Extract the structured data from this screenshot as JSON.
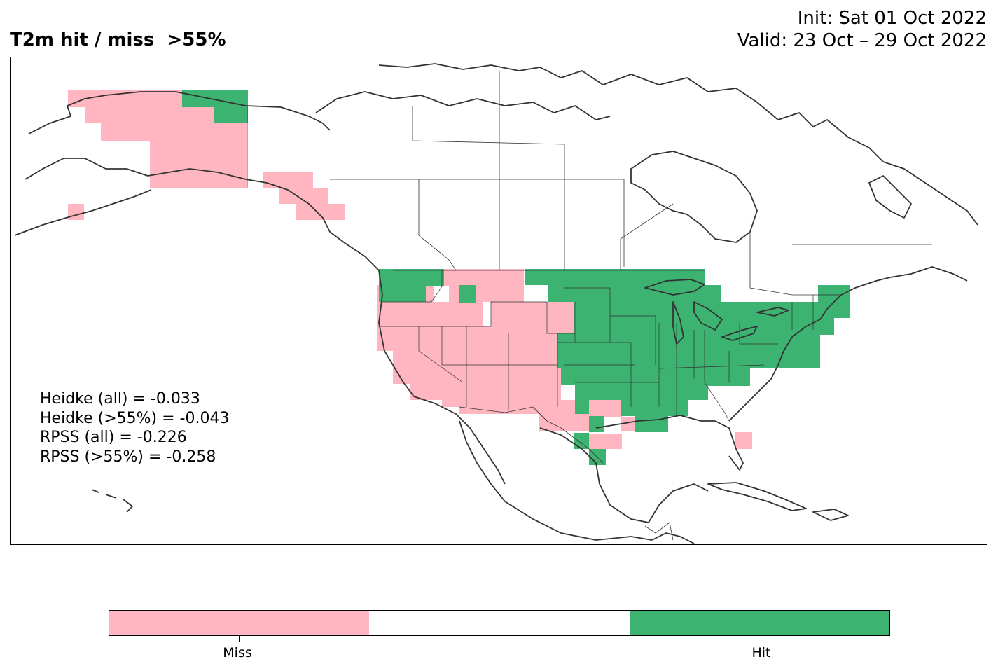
{
  "title": "T2m hit / miss  >55%",
  "init_label": "Init: Sat 01 Oct 2022",
  "valid_label": "Valid: 23 Oct – 29 Oct 2022",
  "scores": [
    "Heidke (all) = -0.033",
    "Heidke (>55%) = -0.043",
    "RPSS (all) = -0.226",
    "RPSS (>55%) = -0.258"
  ],
  "colors": {
    "miss": "#ffb6c1",
    "neutral": "#ffffff",
    "hit": "#3cb371",
    "coast": "#333333"
  },
  "legend": {
    "miss_label": "Miss",
    "hit_label": "Hit"
  }
}
